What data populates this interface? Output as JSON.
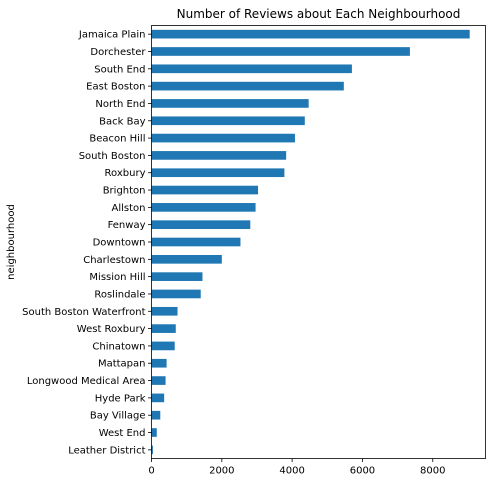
{
  "chart_data": {
    "type": "bar",
    "orientation": "horizontal",
    "title": "Number of Reviews about Each Neighbourhood",
    "xlabel": "",
    "ylabel": "neighbourhood",
    "xlim": [
      0,
      9500
    ],
    "xticks": [
      0,
      2000,
      4000,
      6000,
      8000
    ],
    "xtick_labels": [
      "0",
      "2000",
      "4000",
      "6000",
      "8000"
    ],
    "grid": false,
    "legend": "none",
    "bar_color": "#1f77b4",
    "categories": [
      "Jamaica Plain",
      "Dorchester",
      "South End",
      "East Boston",
      "North End",
      "Back Bay",
      "Beacon Hill",
      "South Boston",
      "Roxbury",
      "Brighton",
      "Allston",
      "Fenway",
      "Downtown",
      "Charlestown",
      "Mission Hill",
      "Roslindale",
      "South Boston Waterfront",
      "West Roxbury",
      "Chinatown",
      "Mattapan",
      "Longwood Medical Area",
      "Hyde Park",
      "Bay Village",
      "West End",
      "Leather District"
    ],
    "values": [
      9050,
      7350,
      5700,
      5470,
      4470,
      4360,
      4080,
      3830,
      3780,
      3030,
      2960,
      2810,
      2530,
      2000,
      1450,
      1400,
      740,
      690,
      660,
      430,
      400,
      360,
      250,
      150,
      40
    ]
  }
}
